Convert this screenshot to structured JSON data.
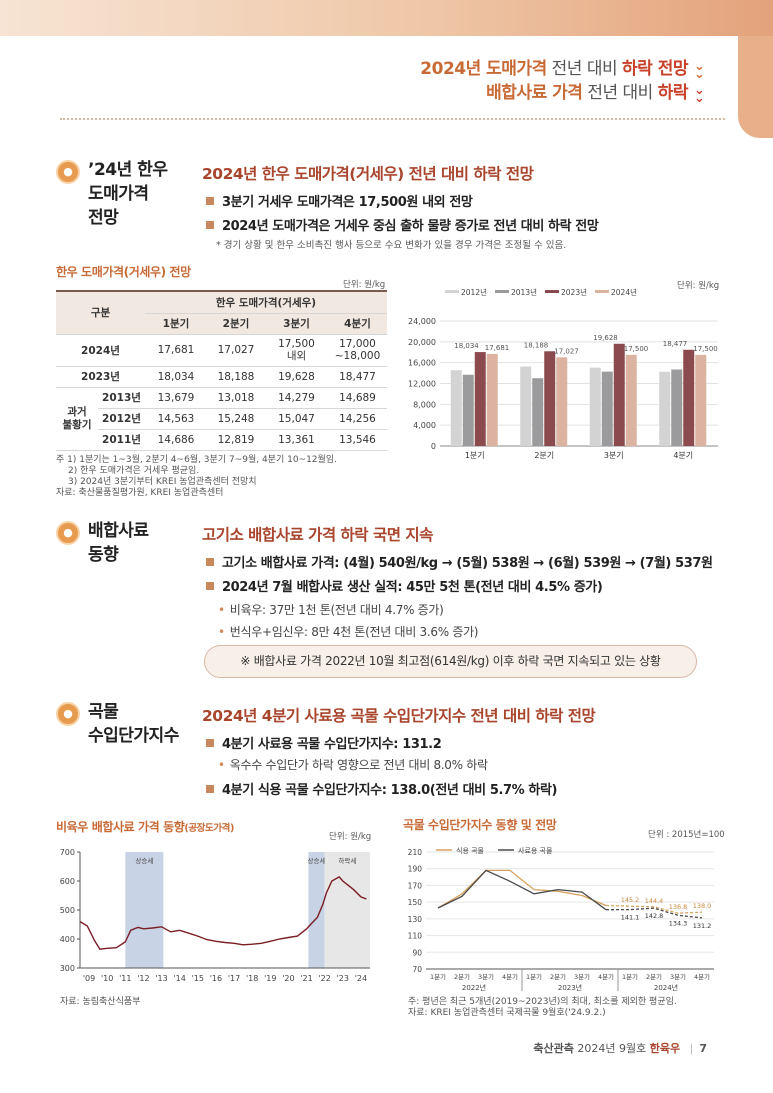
{
  "header": {
    "line1": {
      "a": "2024년 도매가격",
      "b": " 전년 대비 ",
      "c": "하락 전망"
    },
    "line2": {
      "a": "배합사료 가격",
      "b": " 전년 대비 ",
      "c": "하락"
    }
  },
  "sec1": {
    "title1": "’24년 한우",
    "title2": "도매가격",
    "title3": "전망",
    "head": "2024년 한우 도매가격(거세우) 전년 대비 하락 전망",
    "b1": "3분기 거세우 도매가격은 17,500원 내외 전망",
    "b2": "2024년 도매가격은 거세우 중심 출하 물량 증가로 전년 대비 하락 전망",
    "note": "* 경기 상황 및 한우 소비촉진 행사 등으로 수요 변화가 있을 경우 가격은 조정될 수 있음.",
    "table_caption": "한우 도매가격(거세우) 전망",
    "table_unit": "단위: 원/kg",
    "table": {
      "h_gubun": "구분",
      "h_main": "한우 도매가격(거세우)",
      "q": [
        "1분기",
        "2분기",
        "3분기",
        "4분기"
      ],
      "r2024": {
        "label": "2024년",
        "v1": "17,681",
        "v2": "17,027",
        "v3a": "17,500",
        "v3b": "내외",
        "v4a": "17,000",
        "v4b": "~18,000"
      },
      "r2023": {
        "label": "2023년",
        "v": [
          "18,034",
          "18,188",
          "19,628",
          "18,477"
        ]
      },
      "group_a": "과거",
      "group_b": "불황기",
      "r2013": {
        "label": "2013년",
        "v": [
          "13,679",
          "13,018",
          "14,279",
          "14,689"
        ]
      },
      "r2012": {
        "label": "2012년",
        "v": [
          "14,563",
          "15,248",
          "15,047",
          "14,256"
        ]
      },
      "r2011": {
        "label": "2011년",
        "v": [
          "14,686",
          "12,819",
          "13,361",
          "13,546"
        ]
      }
    },
    "fn1": "주   1) 1분기는 1~3월, 2분기 4~6월, 3분기 7~9월, 4분기 10~12월임.",
    "fn2": "2) 한우 도매가격은 거세우 평균임.",
    "fn3": "3) 2024년 3분기부터 KREI 농업관측센터 전망치",
    "fn4": "자료: 축산물품질평가원, KREI 농업관측센터"
  },
  "sec2": {
    "title1": "배합사료",
    "title2": "동향",
    "head": "고기소 배합사료 가격 하락 국면 지속",
    "b1": "고기소 배합사료 가격: (4월) 540원/kg → (5월) 538원 → (6월) 539원 → (7월) 537원",
    "b2": "2024년 7월 배합사료 생산 실적: 45만 5천 톤(전년 대비 4.5% 증가)",
    "s1": "비육우: 37만 1천 톤(전년 대비 4.7% 증가)",
    "s2": "번식우+임신우: 8만 4천 톤(전년 대비 3.6% 증가)",
    "callout": "※ 배합사료 가격 2022년 10월 최고점(614원/kg) 이후 하락 국면 지속되고 있는 상황"
  },
  "sec3": {
    "title1": "곡물",
    "title2": "수입단가지수",
    "head": "2024년 4분기 사료용 곡물 수입단가지수 전년 대비 하락 전망",
    "b1": "4분기 사료용 곡물 수입단가지수: 131.2",
    "s1": "옥수수 수입단가 하락 영향으로 전년 대비 8.0% 하락",
    "b2": "4분기 식용 곡물 수입단가지수: 138.0(전년 대비 5.7% 하락)"
  },
  "chart_data": [
    {
      "type": "bar",
      "title": "",
      "unit": "단위: 원/kg",
      "legend_position": "top",
      "categories": [
        "1분기",
        "2분기",
        "3분기",
        "4분기"
      ],
      "ylim": [
        0,
        24000
      ],
      "yticks": [
        "0",
        "4,000",
        "8,000",
        "12,000",
        "16,000",
        "20,000",
        "24,000"
      ],
      "series": [
        {
          "name": "2012년",
          "color": "#d3d3d3",
          "values": [
            14563,
            15248,
            15047,
            14256
          ]
        },
        {
          "name": "2013년",
          "color": "#9b9b9d",
          "values": [
            13679,
            13018,
            14279,
            14689
          ]
        },
        {
          "name": "2023년",
          "color": "#8a4a4e",
          "values": [
            18034,
            18188,
            19628,
            18477
          ]
        },
        {
          "name": "2024년",
          "color": "#dcb3a0",
          "values": [
            17681,
            17027,
            17500,
            17500
          ]
        }
      ],
      "labels": [
        [
          "18,034",
          "17,681"
        ],
        [
          "18,188",
          "17,027"
        ],
        [
          "19,628",
          "17,500"
        ],
        [
          "18,477",
          "17,500"
        ]
      ]
    },
    {
      "type": "line",
      "title": "비육우 배합사료 가격 동향",
      "title_suffix": "(공장도가격)",
      "unit": "단위: 원/kg",
      "ylim": [
        300,
        700
      ],
      "yticks": [
        "300",
        "400",
        "500",
        "600",
        "700"
      ],
      "xlim": [
        2008.5,
        2024.5
      ],
      "xticks": [
        "'09",
        "'10",
        "'11",
        "'12",
        "'13",
        "'14",
        "'15",
        "'16",
        "'17",
        "'18",
        "'19",
        "'20",
        "'21",
        "'22",
        "'23",
        "'24"
      ],
      "shaded": [
        {
          "from": 2011.0,
          "to": 2013.1,
          "label": "상승세",
          "color": "#c9d3e6"
        },
        {
          "from": 2021.1,
          "to": 2022.0,
          "label": "상승세",
          "color": "#c9d3e6"
        },
        {
          "from": 2022.0,
          "to": 2024.5,
          "label": "하락세",
          "color": "#e7e7e7"
        }
      ],
      "series": [
        {
          "name": "",
          "color": "#7a1e24",
          "x": [
            2008.5,
            2008.9,
            2009.3,
            2009.6,
            2010.0,
            2010.5,
            2011.0,
            2011.3,
            2011.7,
            2012.0,
            2012.5,
            2013.0,
            2013.5,
            2014.0,
            2014.5,
            2015.0,
            2015.5,
            2016.0,
            2016.5,
            2017.0,
            2017.5,
            2018.0,
            2018.5,
            2019.0,
            2019.5,
            2020.0,
            2020.5,
            2021.0,
            2021.3,
            2021.6,
            2021.9,
            2022.1,
            2022.4,
            2022.8,
            2023.0,
            2023.3,
            2023.6,
            2024.0,
            2024.3
          ],
          "y": [
            460,
            445,
            395,
            365,
            368,
            370,
            390,
            430,
            440,
            435,
            438,
            442,
            425,
            430,
            420,
            410,
            398,
            392,
            388,
            385,
            380,
            382,
            385,
            392,
            400,
            405,
            410,
            435,
            455,
            475,
            520,
            560,
            600,
            614,
            600,
            585,
            570,
            545,
            538
          ]
        }
      ]
    },
    {
      "type": "line",
      "title": "곡물 수입단가지수 동향 및 전망",
      "unit": "단위 : 2015년=100",
      "ylim": [
        70,
        210
      ],
      "yticks": [
        "70",
        "90",
        "110",
        "130",
        "150",
        "170",
        "190",
        "210"
      ],
      "categories": [
        "1분기",
        "2분기",
        "3분기",
        "4분기",
        "1분기",
        "2분기",
        "3분기",
        "4분기",
        "1분기",
        "2분기",
        "3분기",
        "4분기"
      ],
      "years": [
        "2022년",
        "2023년",
        "2024년"
      ],
      "series": [
        {
          "name": "식용 곡물",
          "color": "#d6a25f",
          "values": [
            143,
            160,
            188,
            188,
            165,
            163,
            158,
            146,
            145.2,
            144.4,
            136.8,
            138.0
          ]
        },
        {
          "name": "사료용 곡물",
          "color": "#4a4a4a",
          "values": [
            143,
            157,
            188,
            175,
            160,
            165,
            162,
            141,
            141.1,
            142.8,
            134.3,
            131.2
          ]
        }
      ],
      "labels_food": [
        "145.2",
        "144.4",
        "136.8",
        "138.0"
      ],
      "labels_feed": [
        "141.1",
        "142.8",
        "134.3",
        "131.2"
      ],
      "forecast_from_index": 8
    }
  ],
  "bottom": {
    "note1": "자료: 농림축산식품부",
    "note2": "주: 평년은 최근 5개년(2019~2023년)의 최대, 최소를 제외한 평균임.",
    "note3": "자료: KREI 농업관측센터 국제곡물 9월호('24.9.2.)"
  },
  "footer": {
    "a": "축산관측",
    "b": " 2024년 9월호 ",
    "c": "한육우",
    "sep": "|",
    "page": "7"
  }
}
